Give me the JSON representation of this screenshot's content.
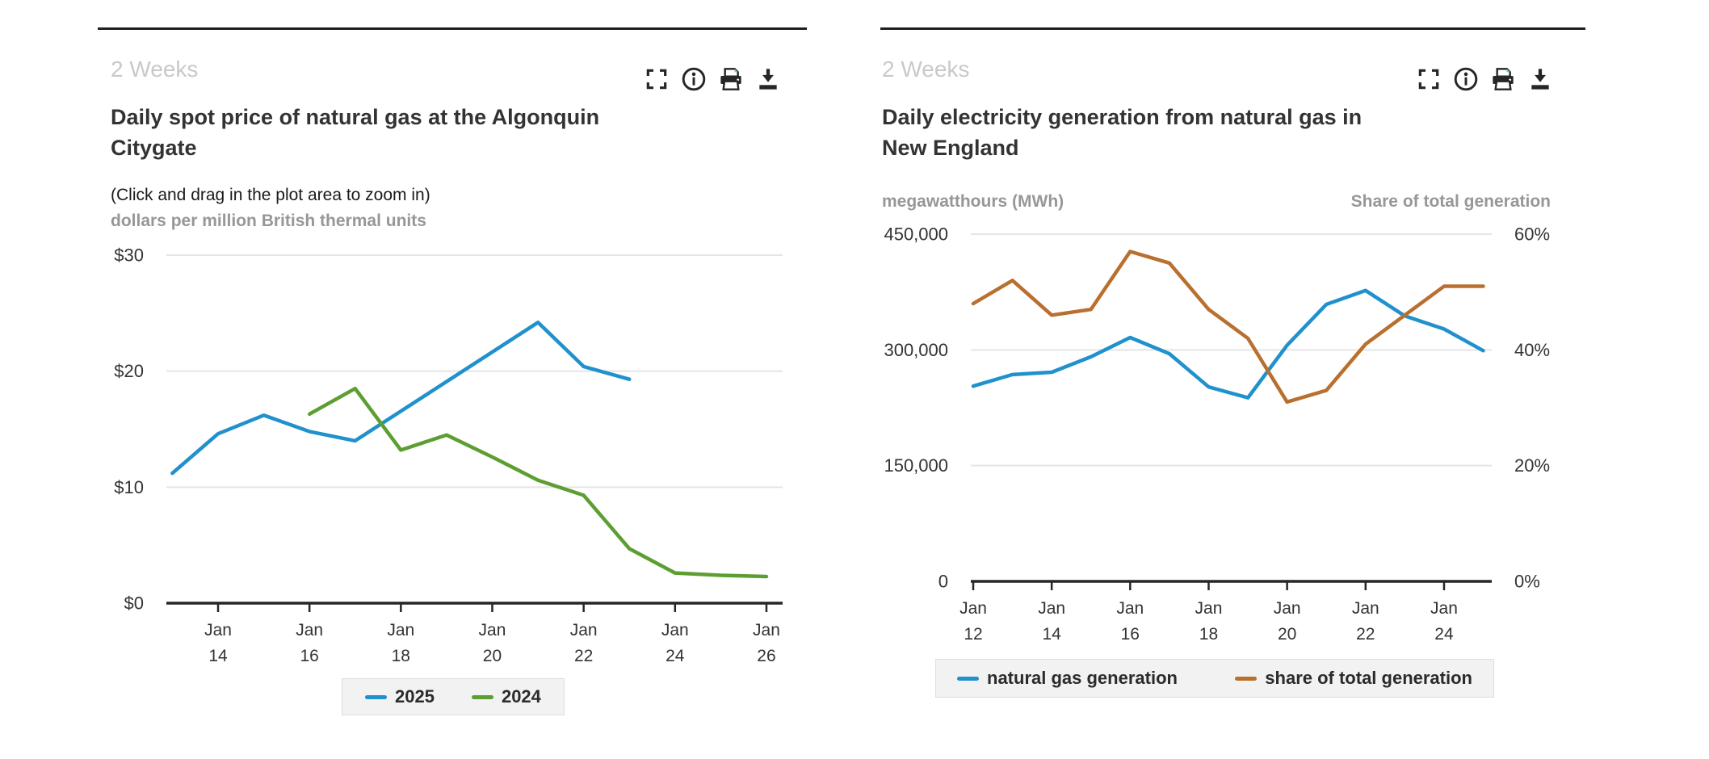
{
  "ui_colors": {
    "background": "#ffffff",
    "title_text": "#333333",
    "period_label_text": "#c9c9c9",
    "axis_unit_text": "#979797",
    "tick_label_text": "#333333",
    "gridline": "#e5e5e5",
    "axis_line": "#262626",
    "legend_background": "#f2f2f2",
    "series_blue": "#2091cd",
    "series_green": "#5d9e33",
    "series_brown": "#b96f2e"
  },
  "charts": [
    {
      "period_label": "2 Weeks",
      "title": "Daily spot price of natural gas at the Algonquin Citygate",
      "title_lines": [
        "Daily spot price of natural gas at the Algonquin",
        "Citygate"
      ],
      "note": "(Click and drag in the plot area to zoom in)",
      "unit_label": "dollars per million British thermal units",
      "toolbar_icons": [
        "fullscreen-icon",
        "info-icon",
        "print-icon",
        "download-icon"
      ]
    },
    {
      "period_label": "2 Weeks",
      "title": "Daily electricity generation from natural gas in New England",
      "title_lines": [
        "Daily electricity generation from natural gas in",
        "New England"
      ],
      "unit_label_left": "megawatthours (MWh)",
      "unit_label_right": "Share of total generation",
      "toolbar_icons": [
        "fullscreen-icon",
        "info-icon",
        "print-icon",
        "download-icon"
      ]
    }
  ],
  "chart_data": [
    {
      "type": "line",
      "title": "Daily spot price of natural gas at the Algonquin Citygate",
      "ylabel": "dollars per million British thermal units",
      "grid": true,
      "legend_position": "bottom-center",
      "x_ticks": [
        {
          "month": "Jan",
          "day": 14
        },
        {
          "month": "Jan",
          "day": 16
        },
        {
          "month": "Jan",
          "day": 18
        },
        {
          "month": "Jan",
          "day": 20
        },
        {
          "month": "Jan",
          "day": 22
        },
        {
          "month": "Jan",
          "day": 24
        },
        {
          "month": "Jan",
          "day": 26
        }
      ],
      "y_axes": [
        {
          "side": "left",
          "lim": [
            0,
            30
          ],
          "ticks": [
            {
              "value": 0,
              "label": "$0"
            },
            {
              "value": 10,
              "label": "$10"
            },
            {
              "value": 20,
              "label": "$20"
            },
            {
              "value": 30,
              "label": "$30"
            }
          ]
        }
      ],
      "series": [
        {
          "name": "2025",
          "axis": 0,
          "color": "#2091cd",
          "x_days": [
            13,
            14,
            15,
            16,
            17,
            21,
            22,
            23
          ],
          "values": [
            11.2,
            14.6,
            16.2,
            14.8,
            14.0,
            24.2,
            20.4,
            19.3
          ]
        },
        {
          "name": "2024",
          "axis": 0,
          "color": "#5d9e33",
          "x_days": [
            16,
            17,
            18,
            19,
            20,
            21,
            22,
            23,
            24,
            25,
            26
          ],
          "values": [
            16.3,
            18.5,
            13.2,
            14.5,
            12.6,
            10.6,
            9.3,
            4.7,
            2.6,
            2.4,
            2.3
          ]
        }
      ]
    },
    {
      "type": "line",
      "title": "Daily electricity generation from natural gas in New England",
      "grid": true,
      "legend_position": "bottom",
      "x_ticks": [
        {
          "month": "Jan",
          "day": 12
        },
        {
          "month": "Jan",
          "day": 14
        },
        {
          "month": "Jan",
          "day": 16
        },
        {
          "month": "Jan",
          "day": 18
        },
        {
          "month": "Jan",
          "day": 20
        },
        {
          "month": "Jan",
          "day": 22
        },
        {
          "month": "Jan",
          "day": 24
        }
      ],
      "y_axes": [
        {
          "side": "left",
          "label": "megawatthours (MWh)",
          "lim": [
            0,
            450000
          ],
          "ticks": [
            {
              "value": 0,
              "label": "0"
            },
            {
              "value": 150000,
              "label": "150,000"
            },
            {
              "value": 300000,
              "label": "300,000"
            },
            {
              "value": 450000,
              "label": "450,000"
            }
          ]
        },
        {
          "side": "right",
          "label": "Share of total generation",
          "lim": [
            0,
            60
          ],
          "ticks": [
            {
              "value": 0,
              "label": "0%"
            },
            {
              "value": 20,
              "label": "20%"
            },
            {
              "value": 40,
              "label": "40%"
            },
            {
              "value": 60,
              "label": "60%"
            }
          ]
        }
      ],
      "series": [
        {
          "name": "natural gas generation",
          "axis": 0,
          "color": "#2091cd",
          "x_days": [
            12,
            13,
            14,
            15,
            16,
            17,
            18,
            19,
            20,
            21,
            22,
            23,
            24,
            25
          ],
          "values": [
            253000,
            268000,
            271000,
            291000,
            316000,
            295000,
            252000,
            238000,
            306000,
            359000,
            377000,
            344000,
            327000,
            299000
          ]
        },
        {
          "name": "share of total generation",
          "axis": 1,
          "color": "#b96f2e",
          "x_days": [
            12,
            13,
            14,
            15,
            16,
            17,
            18,
            19,
            20,
            21,
            22,
            23,
            24,
            25
          ],
          "values": [
            48,
            52,
            46,
            47,
            57,
            55,
            47,
            42,
            31,
            33,
            41,
            46,
            51,
            51
          ]
        }
      ]
    }
  ]
}
